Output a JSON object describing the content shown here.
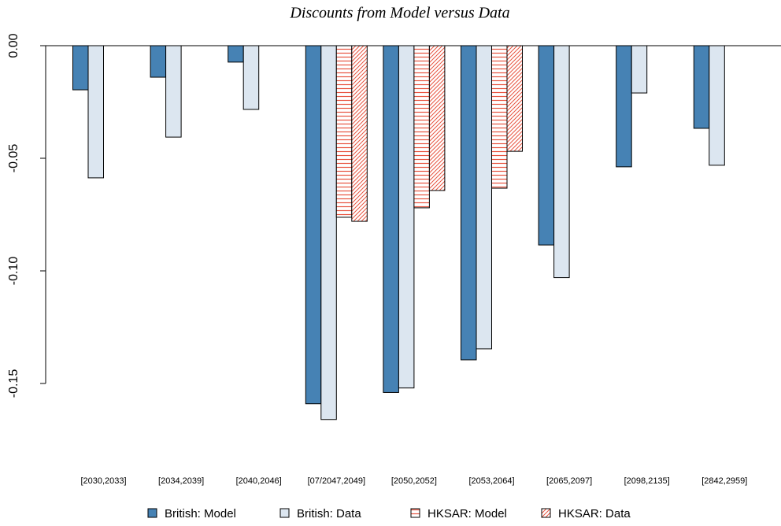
{
  "chart_data": {
    "type": "bar",
    "title": "Discounts from Model versus Data",
    "categories": [
      "[2030,2033]",
      "[2034,2039]",
      "[2040,2046]",
      "[07/2047,2049]",
      "[2050,2052]",
      "[2053,2064]",
      "[2065,2097]",
      "[2098,2135]",
      "[2842,2959]"
    ],
    "series": [
      {
        "name": "British: Model",
        "color": "#4682b4",
        "pattern": "solid",
        "values": [
          -0.0196,
          -0.014,
          -0.0073,
          -0.159,
          -0.154,
          -0.1395,
          -0.0885,
          -0.0538,
          -0.0367
        ]
      },
      {
        "name": "British: Data",
        "color": "#dce6f0",
        "pattern": "solid",
        "values": [
          -0.0587,
          -0.0406,
          -0.0283,
          -0.166,
          -0.152,
          -0.1346,
          -0.103,
          -0.021,
          -0.0531
        ]
      },
      {
        "name": "HKSAR: Model",
        "color": "#e8533f",
        "pattern": "horizontal",
        "values": [
          null,
          null,
          null,
          -0.0762,
          -0.072,
          -0.0633,
          null,
          null,
          null
        ]
      },
      {
        "name": "HKSAR: Data",
        "color": "#e8533f",
        "pattern": "diagonal",
        "values": [
          null,
          null,
          null,
          -0.078,
          -0.0643,
          -0.0469,
          null,
          null,
          null
        ]
      }
    ],
    "ylim": [
      -0.18,
      0
    ],
    "yticks": [
      {
        "value": 0,
        "label": "0.00"
      },
      {
        "value": -0.05,
        "label": "-0.05"
      },
      {
        "value": -0.1,
        "label": "-0.10"
      },
      {
        "value": -0.15,
        "label": "-0.15"
      }
    ],
    "grid": false
  }
}
